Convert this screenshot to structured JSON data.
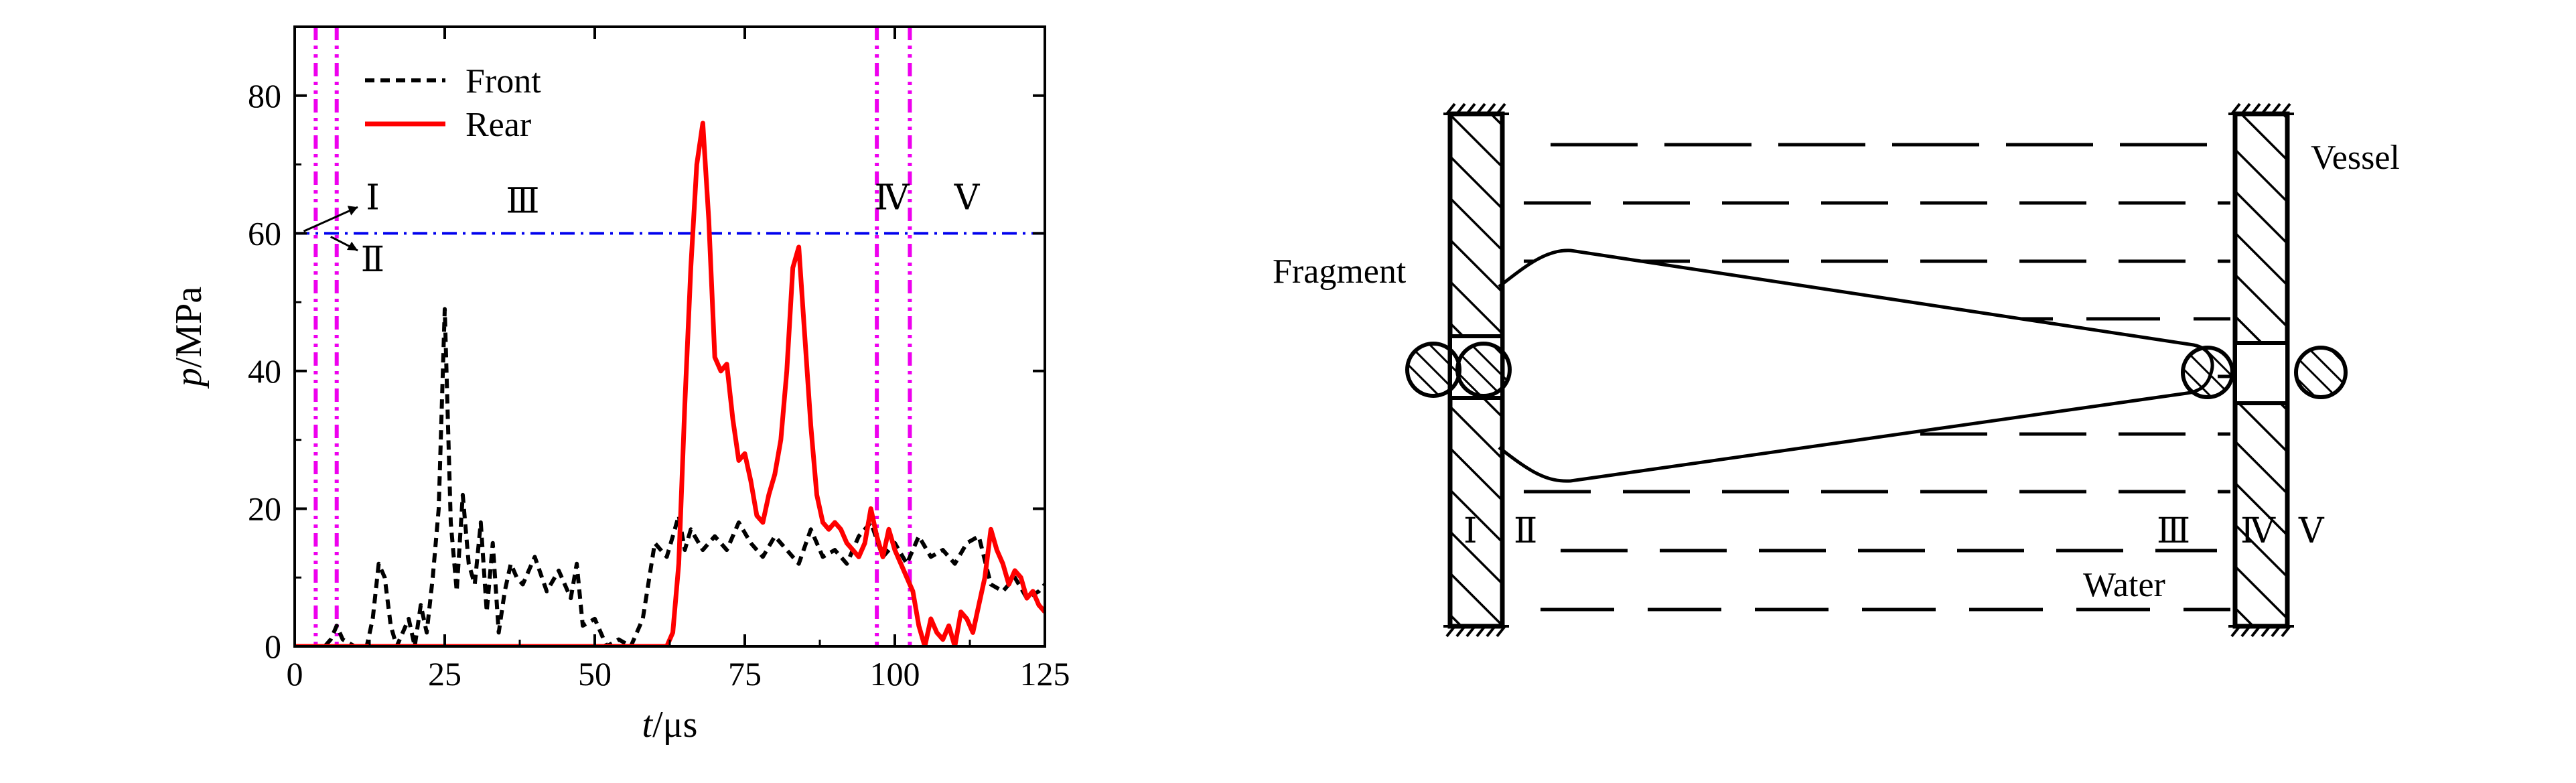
{
  "chart_data": {
    "type": "line",
    "xlabel_var": "t",
    "xlabel_unit": "/μs",
    "ylabel_var": "p",
    "ylabel_unit": "/MPa",
    "xlim": [
      0,
      125
    ],
    "ylim": [
      0,
      90
    ],
    "xticks": [
      0,
      25,
      50,
      75,
      100,
      125
    ],
    "yticks": [
      0,
      20,
      40,
      60,
      80
    ],
    "grid": false,
    "legend_placement": "top-left",
    "series": [
      {
        "name": "Front",
        "color": "#000000",
        "style": "dashed",
        "x": [
          0,
          5,
          6,
          7,
          8,
          10,
          12,
          13,
          14,
          15,
          16,
          17,
          18,
          19,
          20,
          21,
          22,
          23,
          24,
          25,
          26,
          27,
          28,
          29,
          30,
          31,
          32,
          33,
          34,
          35,
          36,
          37,
          38,
          40,
          42,
          44,
          46,
          47,
          48,
          50,
          52,
          54,
          56,
          58,
          60,
          62,
          63,
          64,
          65,
          66,
          68,
          70,
          72,
          74,
          76,
          78,
          80,
          82,
          84,
          86,
          88,
          90,
          92,
          94,
          96,
          98,
          100,
          102,
          104,
          106,
          108,
          110,
          112,
          114,
          116,
          118,
          120,
          122,
          124,
          125
        ],
        "y": [
          0,
          0,
          1,
          3,
          1,
          0,
          0,
          4,
          12,
          10,
          3,
          0,
          2,
          4,
          0,
          6,
          2,
          10,
          20,
          49,
          18,
          8,
          22,
          12,
          9,
          18,
          5,
          15,
          2,
          8,
          12,
          10,
          9,
          13,
          8,
          11,
          7,
          12,
          3,
          4,
          0,
          1,
          0,
          4,
          15,
          13,
          16,
          19,
          14,
          17,
          14,
          16,
          14,
          18,
          15,
          13,
          16,
          14,
          12,
          17,
          13,
          14,
          12,
          16,
          18,
          13,
          15,
          12,
          16,
          13,
          14,
          12,
          15,
          16,
          9,
          8,
          10,
          7,
          8,
          9
        ]
      },
      {
        "name": "Rear",
        "color": "#ff0000",
        "style": "solid",
        "x": [
          0,
          62,
          63,
          64,
          65,
          66,
          67,
          68,
          69,
          70,
          71,
          72,
          73,
          74,
          75,
          76,
          77,
          78,
          79,
          80,
          81,
          82,
          83,
          84,
          85,
          86,
          87,
          88,
          89,
          90,
          91,
          92,
          93,
          94,
          95,
          96,
          97,
          98,
          99,
          100,
          101,
          102,
          103,
          104,
          105,
          106,
          107,
          108,
          109,
          110,
          111,
          112,
          113,
          114,
          115,
          116,
          117,
          118,
          119,
          120,
          121,
          122,
          123,
          124,
          125
        ],
        "y": [
          0,
          0,
          2,
          12,
          35,
          55,
          70,
          76,
          62,
          42,
          40,
          41,
          33,
          27,
          28,
          24,
          19,
          18,
          22,
          25,
          30,
          40,
          55,
          58,
          45,
          32,
          22,
          18,
          17,
          18,
          17,
          15,
          14,
          13,
          15,
          20,
          16,
          13,
          17,
          14,
          12,
          10,
          8,
          3,
          0,
          4,
          2,
          1,
          3,
          0,
          5,
          4,
          2,
          6,
          10,
          17,
          14,
          12,
          9,
          11,
          10,
          7,
          8,
          6,
          5
        ]
      }
    ],
    "hlines": [
      {
        "y": 60,
        "color": "#0000ee",
        "style": "dash-dot"
      }
    ],
    "vlines": [
      {
        "x": 3.5,
        "color": "#ee00ee",
        "style": "dash-dot-dot"
      },
      {
        "x": 7,
        "color": "#ee00ee",
        "style": "dash-dot-dot"
      },
      {
        "x": 97,
        "color": "#ee00ee",
        "style": "dash-dot-dot"
      },
      {
        "x": 102.5,
        "color": "#ee00ee",
        "style": "dash-dot-dot"
      }
    ],
    "region_labels": [
      {
        "text": "Ⅰ",
        "x": 13,
        "y": 63.5
      },
      {
        "text": "Ⅱ",
        "x": 13,
        "y": 54.5
      },
      {
        "text": "Ⅲ",
        "x": 38,
        "y": 63
      },
      {
        "text": "Ⅳ",
        "x": 99.5,
        "y": 63.5
      },
      {
        "text": "Ⅴ",
        "x": 112,
        "y": 63.5
      }
    ]
  },
  "diagram": {
    "labels": {
      "vessel": "Vessel",
      "fragment": "Fragment",
      "water": "Water",
      "region_1": "Ⅰ",
      "region_2": "Ⅱ",
      "region_3": "Ⅲ",
      "region_4": "Ⅳ",
      "region_5": "Ⅴ"
    }
  }
}
